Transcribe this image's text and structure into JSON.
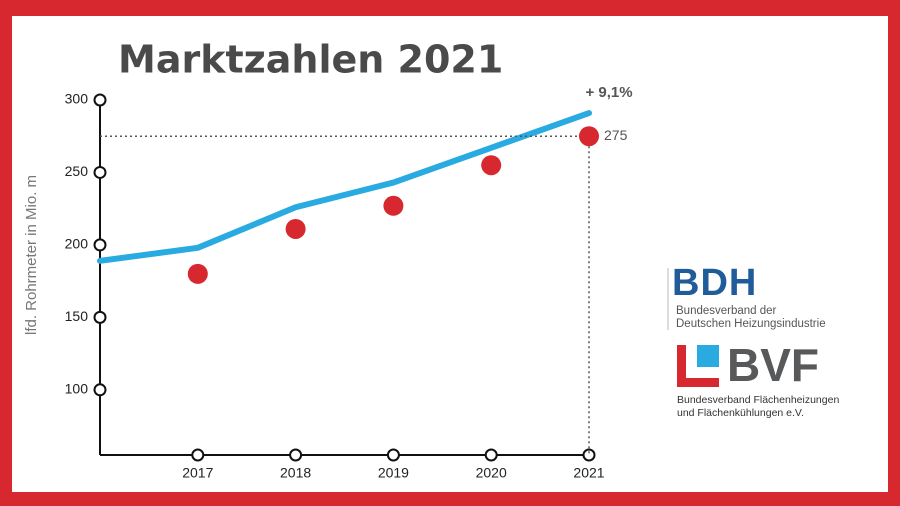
{
  "chart_data": {
    "type": "line",
    "title": "Marktzahlen 2021",
    "y_label": "lfd. Rohrmeter in Mio. m",
    "categories": [
      null,
      "2017",
      "2018",
      "2019",
      "2020",
      "2021"
    ],
    "series": [
      {
        "color": "#29abe2",
        "style": "line",
        "values": [
          189,
          198,
          226,
          243,
          267,
          291
        ]
      },
      {
        "color": "#d7282f",
        "style": "dots",
        "values": [
          null,
          180,
          211,
          227,
          255,
          275
        ],
        "value_labels": [
          null,
          null,
          null,
          null,
          null,
          "275"
        ]
      }
    ],
    "annotations": [
      {
        "text": "+ 9,1%",
        "series": 0,
        "index": 5
      }
    ],
    "ylim": [
      55,
      300
    ],
    "yticks": [
      100,
      150,
      200,
      250,
      300
    ]
  },
  "logos": [
    {
      "name": "BDH",
      "color": "#1f5c99",
      "lines": [
        "Bundesverband der",
        "Deutschen Heizungsindustrie"
      ]
    },
    {
      "name": "BVF",
      "color": "#58595b",
      "lines": [
        "Bundesverband Flächenheizungen",
        "und Flächenkühlungen e.V."
      ]
    }
  ]
}
